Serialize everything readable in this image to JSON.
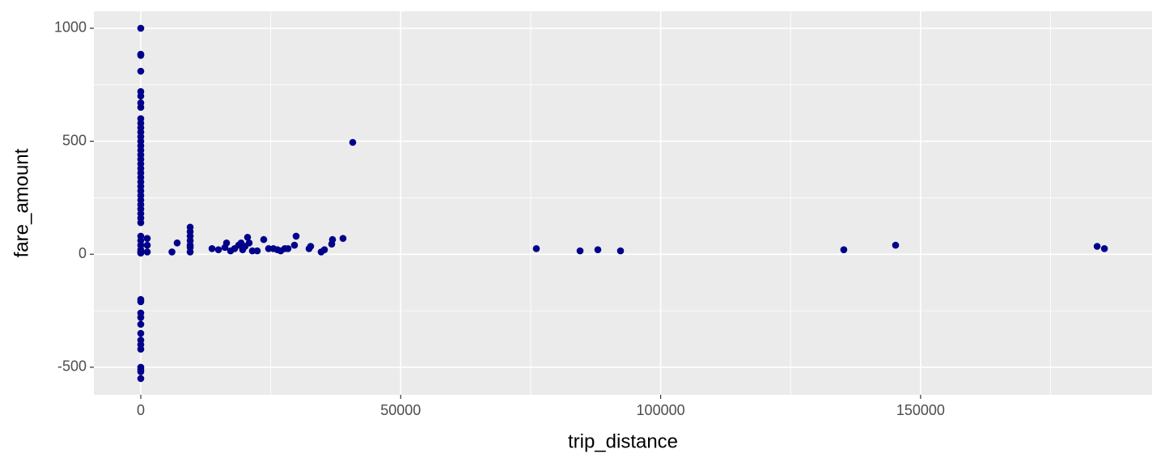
{
  "chart_data": {
    "type": "scatter",
    "x_label": "trip_distance",
    "y_label": "fare_amount",
    "color": "#00008b",
    "grid": true,
    "xlim": [
      -9026,
      194523
    ],
    "ylim": [
      -622,
      1075
    ],
    "xticks": [
      0,
      50000,
      100000,
      150000
    ],
    "yticks": [
      -500,
      0,
      500,
      1000
    ],
    "x": [
      0,
      0,
      0,
      0,
      0,
      0,
      0,
      0,
      0,
      0,
      0,
      0,
      0,
      0,
      0,
      0,
      0,
      0,
      0,
      0,
      0,
      0,
      0,
      0,
      0,
      0,
      0,
      0,
      0,
      0,
      0,
      0,
      0,
      0,
      0,
      0,
      0,
      0,
      0,
      0,
      0,
      0,
      0,
      0,
      0,
      0,
      0,
      0,
      0,
      0,
      0,
      1245,
      1245,
      1245,
      6000,
      7000,
      9500,
      9500,
      9500,
      9500,
      9500,
      9500,
      9500,
      13700,
      14940,
      16180,
      16500,
      17270,
      18050,
      18830,
      19300,
      19600,
      20070,
      20540,
      20850,
      21470,
      22400,
      23650,
      24590,
      25520,
      26300,
      26920,
      27700,
      28320,
      29560,
      29880,
      32370,
      32680,
      34700,
      35330,
      36730,
      36880,
      38900,
      40770,
      76090,
      84500,
      87920,
      92280,
      135230,
      145190,
      183960,
      185360
    ],
    "y": [
      1000,
      885,
      880,
      810,
      720,
      700,
      670,
      650,
      600,
      580,
      560,
      540,
      520,
      500,
      480,
      460,
      440,
      420,
      400,
      380,
      360,
      340,
      320,
      300,
      280,
      260,
      240,
      220,
      200,
      180,
      160,
      140,
      80,
      60,
      40,
      20,
      10,
      5,
      -200,
      -210,
      -260,
      -280,
      -310,
      -350,
      -380,
      -400,
      -420,
      -500,
      -510,
      -520,
      -550,
      70,
      40,
      10,
      10,
      50,
      120,
      100,
      80,
      60,
      40,
      30,
      10,
      25,
      20,
      30,
      50,
      15,
      25,
      40,
      50,
      20,
      35,
      75,
      50,
      15,
      15,
      65,
      25,
      25,
      20,
      15,
      25,
      25,
      40,
      80,
      25,
      35,
      10,
      20,
      45,
      65,
      70,
      495,
      25,
      15,
      20,
      15,
      20,
      40,
      35,
      25
    ]
  }
}
